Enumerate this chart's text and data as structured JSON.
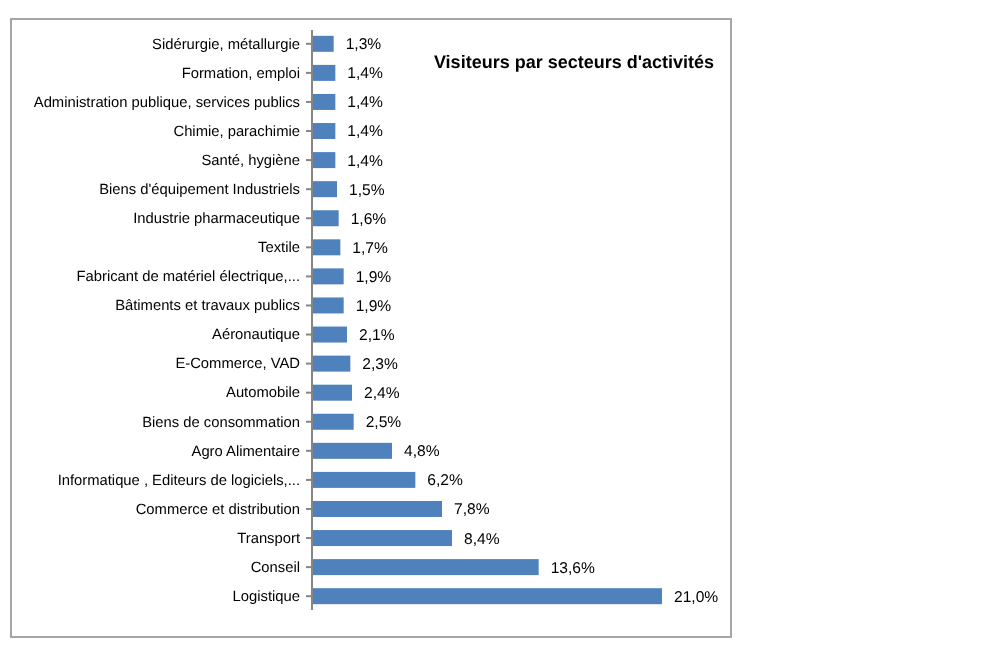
{
  "chart_data": {
    "type": "bar",
    "orientation": "horizontal",
    "title": "Visiteurs par secteurs d'activités",
    "categories": [
      "Sidérurgie, métallurgie",
      "Formation, emploi",
      "Administration publique, services publics",
      "Chimie, parachimie",
      "Santé, hygiène",
      "Biens d'équipement Industriels",
      "Industrie pharmaceutique",
      "Textile",
      "Fabricant de matériel électrique,...",
      "Bâtiments et travaux publics",
      "Aéronautique",
      "E-Commerce, VAD",
      "Automobile",
      "Biens de consommation",
      "Agro Alimentaire",
      "Informatique , Editeurs de logiciels,...",
      "Commerce et distribution",
      "Transport",
      "Conseil",
      "Logistique"
    ],
    "values": [
      1.3,
      1.4,
      1.4,
      1.4,
      1.4,
      1.5,
      1.6,
      1.7,
      1.9,
      1.9,
      2.1,
      2.3,
      2.4,
      2.5,
      4.8,
      6.2,
      7.8,
      8.4,
      13.6,
      21.0
    ],
    "value_labels": [
      "1,3%",
      "1,4%",
      "1,4%",
      "1,4%",
      "1,4%",
      "1,5%",
      "1,6%",
      "1,7%",
      "1,9%",
      "1,9%",
      "2,1%",
      "2,3%",
      "2,4%",
      "2,5%",
      "4,8%",
      "6,2%",
      "7,8%",
      "8,4%",
      "13,6%",
      "21,0%"
    ],
    "color": "#4f81bd"
  }
}
